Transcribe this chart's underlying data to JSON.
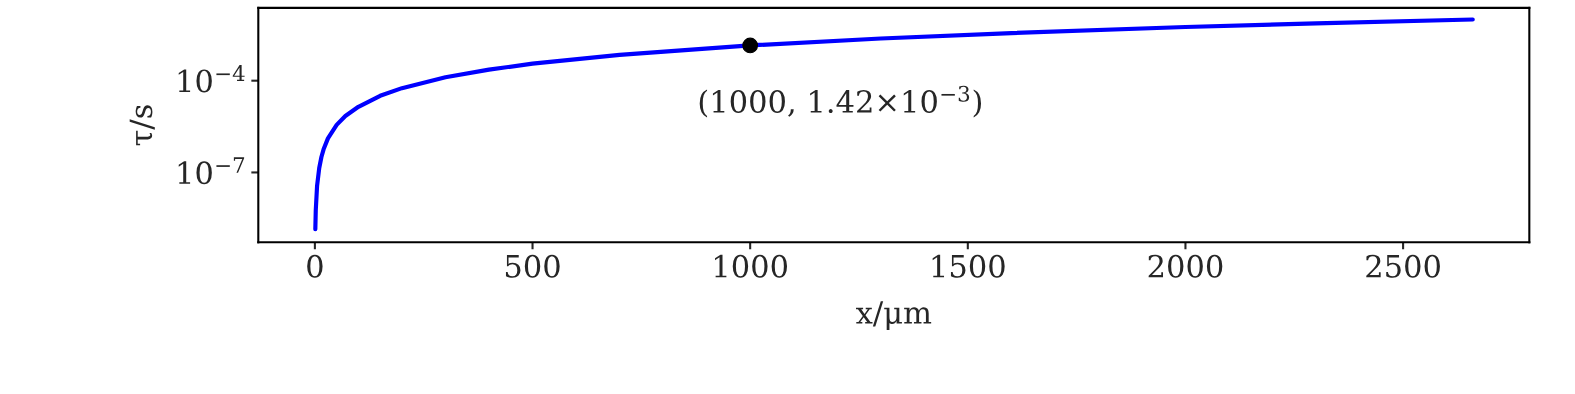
{
  "chart_data": {
    "type": "line",
    "xlabel": "x/μm",
    "ylabel": "τ/s",
    "log": "y",
    "xlim": [
      -130,
      2790
    ],
    "xticks": [
      0,
      500,
      1000,
      1500,
      2000,
      2500
    ],
    "ylim": [
      5.2e-10,
      0.024
    ],
    "yticks": [
      {
        "value": 0.0001,
        "label": "10$^{−4}$"
      },
      {
        "value": 1e-07,
        "label": "10$^{−7}$"
      }
    ],
    "grid": false,
    "legend": false,
    "series": [
      {
        "color": "#0000ff",
        "x": [
          1,
          2,
          5,
          10,
          15,
          20,
          30,
          50,
          70,
          100,
          150,
          200,
          300,
          400,
          500,
          700,
          850,
          1000,
          1300,
          1600,
          2000,
          2300,
          2660
        ],
        "values": [
          1.4e-09,
          5.7e-09,
          3.6e-08,
          1.4e-07,
          3.2e-07,
          5.7e-07,
          1.3e-06,
          3.6e-06,
          7e-06,
          1.4e-05,
          3.2e-05,
          5.7e-05,
          0.00013,
          0.00023,
          0.00036,
          0.0007,
          0.001,
          0.00142,
          0.0024,
          0.0036,
          0.0057,
          0.0075,
          0.01
        ]
      },
      {
        "type": "scatter",
        "color": "#000000",
        "marker": "circle",
        "x": [
          1000
        ],
        "values": [
          0.00142
        ]
      }
    ],
    "annotations": [
      {
        "text": "(1000, 1.42×10$^{−3}$)",
        "x": 1000,
        "y": 0.00142
      }
    ]
  }
}
